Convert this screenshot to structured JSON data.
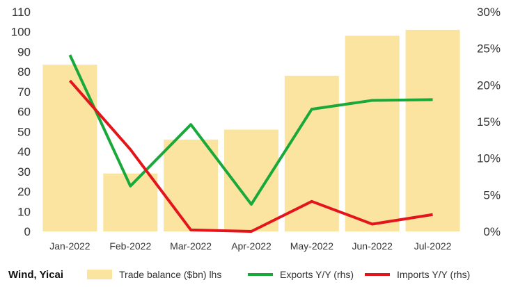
{
  "source_label": "Wind, Yicai",
  "colors": {
    "bar": "#fbe4a0",
    "exports": "#19a83a",
    "imports": "#e3141b"
  },
  "chart_data": {
    "type": "bar+line",
    "categories": [
      "Jan-2022",
      "Feb-2022",
      "Mar-2022",
      "Apr-2022",
      "May-2022",
      "Jun-2022",
      "Jul-2022"
    ],
    "y_left": {
      "ylim": [
        0,
        110
      ],
      "ticks": [
        0,
        10,
        20,
        30,
        40,
        50,
        60,
        70,
        80,
        90,
        100,
        110
      ]
    },
    "y_right": {
      "ylim": [
        0,
        30
      ],
      "ticks": [
        "0%",
        "5%",
        "10%",
        "15%",
        "20%",
        "25%",
        "30%"
      ]
    },
    "series": [
      {
        "name": "Trade balance ($bn) lhs",
        "type": "bar",
        "axis": "left",
        "values": [
          83.5,
          29,
          46,
          51,
          78,
          98,
          101
        ]
      },
      {
        "name": "Exports Y/Y (rhs)",
        "type": "line",
        "axis": "right",
        "values": [
          24.1,
          6.2,
          14.6,
          3.7,
          16.7,
          17.9,
          18.0
        ]
      },
      {
        "name": "Imports Y/Y (rhs)",
        "type": "line",
        "axis": "right",
        "values": [
          20.6,
          11.2,
          0.2,
          0.0,
          4.1,
          1.0,
          2.3
        ]
      }
    ],
    "grid": false,
    "legend_position": "bottom"
  }
}
